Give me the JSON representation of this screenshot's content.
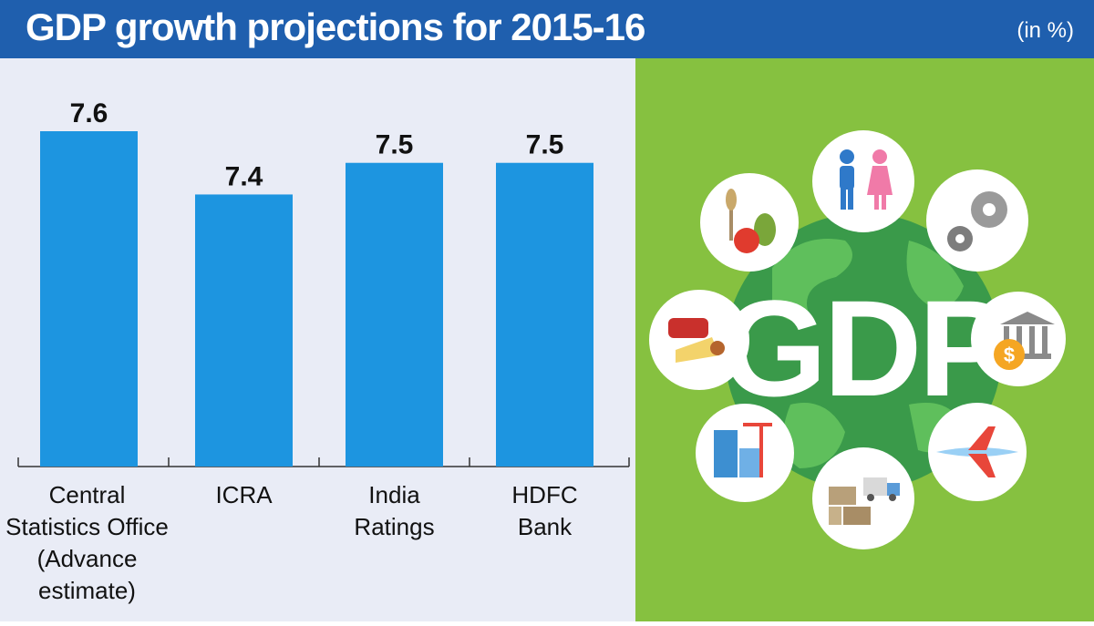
{
  "header": {
    "title": "GDP growth projections for 2015-16",
    "unit": "(in %)"
  },
  "chart_data": {
    "type": "bar",
    "title": "GDP growth projections for 2015-16",
    "unit": "(in %)",
    "categories": [
      [
        "Central",
        "Statistics Office",
        "(Advance",
        "estimate)"
      ],
      [
        "ICRA"
      ],
      [
        "India",
        "Ratings"
      ],
      [
        "HDFC",
        "Bank"
      ]
    ],
    "values": [
      7.6,
      7.4,
      7.5,
      7.5
    ],
    "value_labels": [
      "7.6",
      "7.4",
      "7.5",
      "7.5"
    ],
    "baseline": 6.54,
    "ylim": [
      6.54,
      7.6
    ],
    "grid": false,
    "legend": "none",
    "bar_color": "#1d95e0",
    "xlabel": "",
    "ylabel": ""
  },
  "illustration": {
    "text": "GDP",
    "background_color": "#86c140",
    "globe_color": "#3a9a4a",
    "icons": [
      "people-icon",
      "gears-icon",
      "bank-coin-icon",
      "airplane-icon",
      "truck-boxes-icon",
      "buildings-crane-icon",
      "meat-cheese-icon",
      "wheat-fruit-icon"
    ]
  }
}
